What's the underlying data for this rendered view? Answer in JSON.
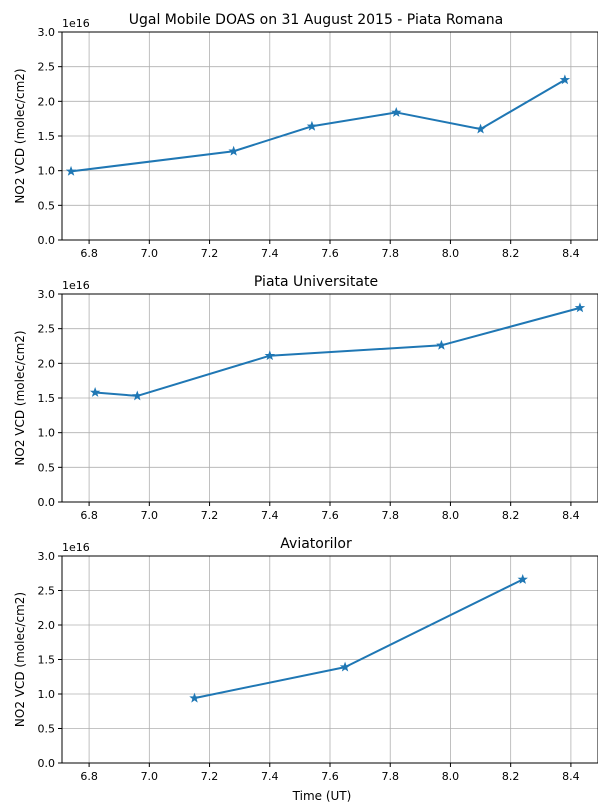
{
  "chart_data": [
    {
      "type": "line",
      "title": "Ugal Mobile DOAS on 31 August 2015 - Piata Romana",
      "xlabel": "",
      "ylabel": "NO2 VCD (molec/cm2)",
      "y_offset_label": "1e16",
      "xlim": [
        6.71,
        8.49
      ],
      "ylim": [
        0.0,
        3.0
      ],
      "xticks": [
        "6.8",
        "7.0",
        "7.2",
        "7.4",
        "7.6",
        "7.8",
        "8.0",
        "8.2",
        "8.4"
      ],
      "yticks": [
        "0.0",
        "0.5",
        "1.0",
        "1.5",
        "2.0",
        "2.5",
        "3.0"
      ],
      "grid": true,
      "marker": "star",
      "color": "#1f77b4",
      "series": [
        {
          "x": [
            6.74,
            7.28,
            7.54,
            7.82,
            8.1,
            8.38
          ],
          "y": [
            0.99,
            1.28,
            1.64,
            1.84,
            1.6,
            2.31
          ]
        }
      ]
    },
    {
      "type": "line",
      "title": "Piata Universitate",
      "xlabel": "",
      "ylabel": "NO2 VCD (molec/cm2)",
      "y_offset_label": "1e16",
      "xlim": [
        6.71,
        8.49
      ],
      "ylim": [
        0.0,
        3.0
      ],
      "xticks": [
        "6.8",
        "7.0",
        "7.2",
        "7.4",
        "7.6",
        "7.8",
        "8.0",
        "8.2",
        "8.4"
      ],
      "yticks": [
        "0.0",
        "0.5",
        "1.0",
        "1.5",
        "2.0",
        "2.5",
        "3.0"
      ],
      "grid": true,
      "marker": "star",
      "color": "#1f77b4",
      "series": [
        {
          "x": [
            6.82,
            6.96,
            7.4,
            7.97,
            8.43
          ],
          "y": [
            1.58,
            1.53,
            2.11,
            2.26,
            2.8
          ]
        }
      ]
    },
    {
      "type": "line",
      "title": "Aviatorilor",
      "xlabel": "Time (UT)",
      "ylabel": "NO2 VCD (molec/cm2)",
      "y_offset_label": "1e16",
      "xlim": [
        6.71,
        8.49
      ],
      "ylim": [
        0.0,
        3.0
      ],
      "xticks": [
        "6.8",
        "7.0",
        "7.2",
        "7.4",
        "7.6",
        "7.8",
        "8.0",
        "8.2",
        "8.4"
      ],
      "yticks": [
        "0.0",
        "0.5",
        "1.0",
        "1.5",
        "2.0",
        "2.5",
        "3.0"
      ],
      "grid": true,
      "marker": "star",
      "color": "#1f77b4",
      "series": [
        {
          "x": [
            7.15,
            7.65,
            8.24
          ],
          "y": [
            0.94,
            1.39,
            2.66
          ]
        }
      ]
    }
  ]
}
